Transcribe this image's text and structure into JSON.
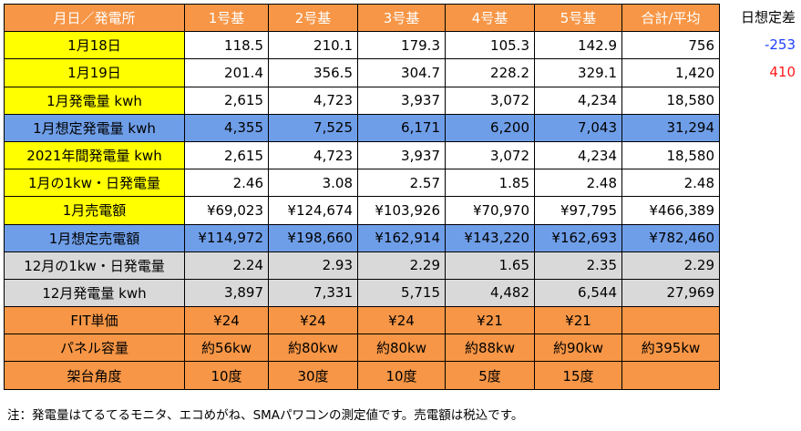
{
  "table": {
    "header": [
      "月日／発電所",
      "1号基",
      "2号基",
      "3号基",
      "4号基",
      "5号基",
      "合計/平均"
    ],
    "rows": [
      {
        "style": "white",
        "label": "1月18日",
        "values": [
          "118.5",
          "210.1",
          "179.3",
          "105.3",
          "142.9",
          "756"
        ]
      },
      {
        "style": "white",
        "label": "1月19日",
        "values": [
          "201.4",
          "356.5",
          "304.7",
          "228.2",
          "329.1",
          "1,420"
        ]
      },
      {
        "style": "white",
        "label": "1月発電量 kwh",
        "values": [
          "2,615",
          "4,723",
          "3,937",
          "3,072",
          "4,234",
          "18,580"
        ]
      },
      {
        "style": "blue",
        "label": "1月想定発電量 kwh",
        "values": [
          "4,355",
          "7,525",
          "6,171",
          "6,200",
          "7,043",
          "31,294"
        ]
      },
      {
        "style": "white",
        "label": "2021年間発電量 kwh",
        "values": [
          "2,615",
          "4,723",
          "3,937",
          "3,072",
          "4,234",
          "18,580"
        ]
      },
      {
        "style": "white",
        "label": "1月の1kw・日発電量",
        "values": [
          "2.46",
          "3.08",
          "2.57",
          "1.85",
          "2.48",
          "2.48"
        ]
      },
      {
        "style": "white",
        "label": "1月売電額",
        "values": [
          "¥69,023",
          "¥124,674",
          "¥103,926",
          "¥70,970",
          "¥97,795",
          "¥466,389"
        ]
      },
      {
        "style": "blue",
        "label": "1月想定売電額",
        "values": [
          "¥114,972",
          "¥198,660",
          "¥162,914",
          "¥143,220",
          "¥162,693",
          "¥782,460"
        ]
      },
      {
        "style": "gray",
        "label": "12月の1kw・日発電量",
        "values": [
          "2.24",
          "2.93",
          "2.29",
          "1.65",
          "2.35",
          "2.29"
        ]
      },
      {
        "style": "gray",
        "label": "12月発電量 kwh",
        "values": [
          "3,897",
          "7,331",
          "5,715",
          "4,482",
          "6,544",
          "27,969"
        ]
      },
      {
        "style": "orange",
        "label": "FIT単価",
        "values": [
          "¥24",
          "¥24",
          "¥24",
          "¥21",
          "¥21",
          ""
        ]
      },
      {
        "style": "orange",
        "label": "パネル容量",
        "values": [
          "約56kw",
          "約80kw",
          "約80kw",
          "約88kw",
          "約90kw",
          "約395kw"
        ]
      },
      {
        "style": "orange",
        "label": "架台角度",
        "values": [
          "10度",
          "30度",
          "10度",
          "5度",
          "15度",
          ""
        ]
      }
    ]
  },
  "side": {
    "title": "日想定差",
    "values": [
      {
        "text": "-253",
        "color": "#1f3fff"
      },
      {
        "text": "410",
        "color": "#ff1a1a"
      }
    ]
  },
  "note": "注：発電量はてるてるモニタ、エコめがね、SMAパワコンの測定値です。売電額は税込です。",
  "colors": {
    "header_bg": "#f79646",
    "label_yellow": "#ffff00",
    "blue": "#6f9ee8",
    "gray": "#d9d9d9",
    "orange": "#f79646",
    "white": "#ffffff"
  }
}
